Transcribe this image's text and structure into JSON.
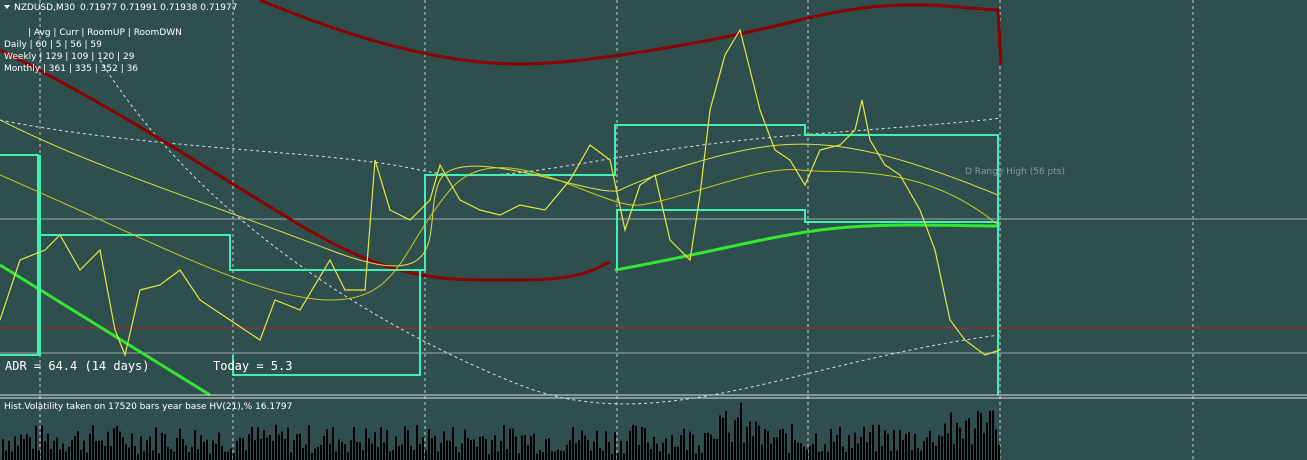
{
  "header": {
    "symbol": "NZDUSD,M30",
    "quotes": "0.71977 0.71991 0.71938 0.71977"
  },
  "room_table": {
    "header": "| Avg | Curr | RoomUP | RoomDWN",
    "rows": [
      "Daily | 60 | 5 | 56 | 59",
      "Weekly | 129 | 109 | 120 | 29",
      "Monthly | 361 | 335 | 352 | 36"
    ]
  },
  "adr_label": "ADR = 64.4  (14 days)",
  "today_label": "Today = 5.3",
  "range_label": "D Range High (56 pts)",
  "indicator_label": "Hist.Volatility  taken on 17520 bars year base  HV(21),%  16.1797"
}
